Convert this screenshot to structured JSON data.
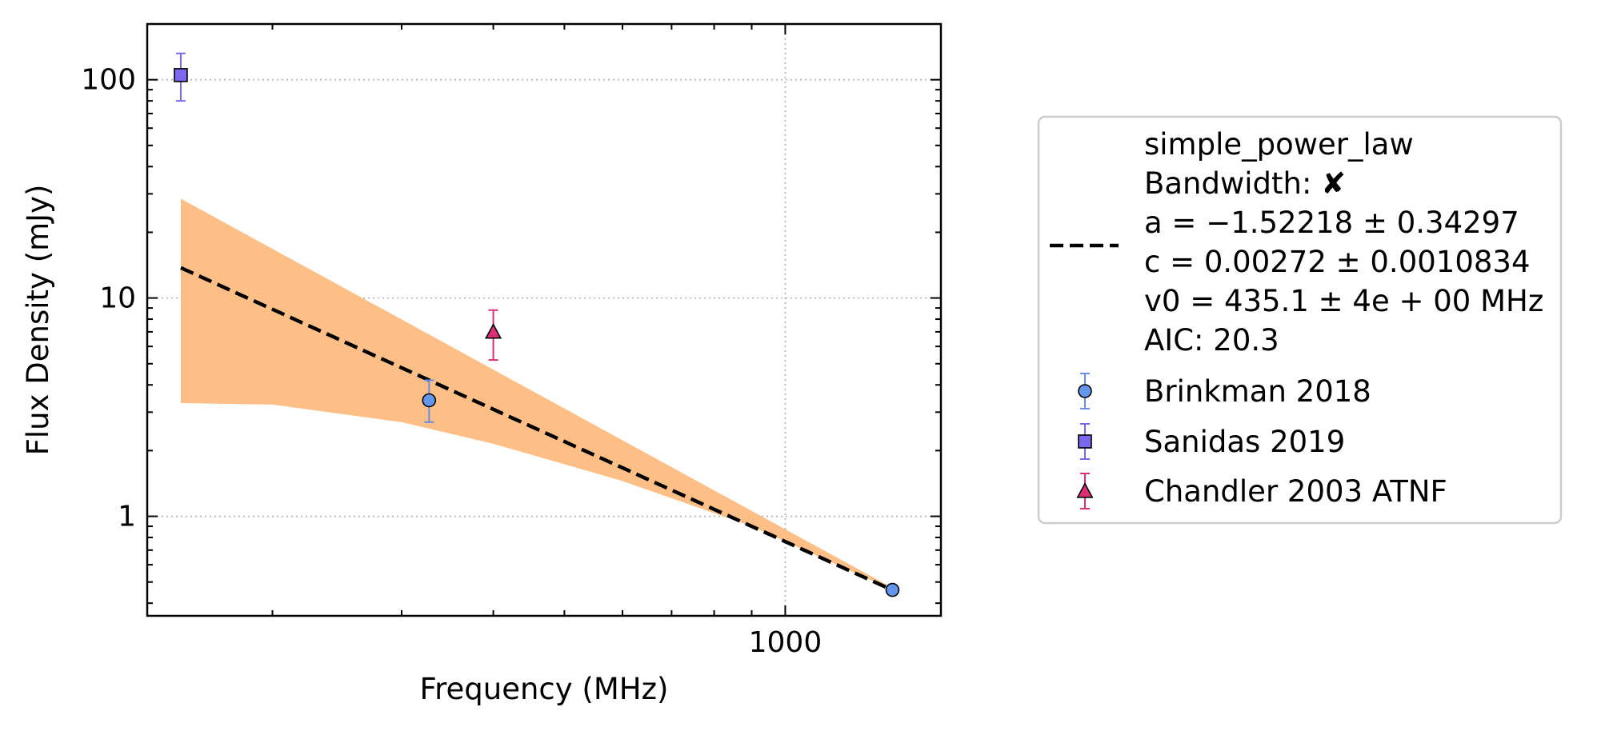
{
  "chart_data": {
    "type": "scatter",
    "title": "",
    "xlabel": "Frequency (MHz)",
    "ylabel": "Flux Density (mJy)",
    "xscale": "log",
    "yscale": "log",
    "xlim": [
      135,
      1630
    ],
    "ylim": [
      0.35,
      180
    ],
    "grid": "dotted, major ticks only",
    "x_tick_labels": [
      {
        "value": 1000,
        "label": "1000"
      }
    ],
    "y_tick_labels": [
      {
        "value": 100,
        "label": "100"
      },
      {
        "value": 10,
        "label": "10"
      },
      {
        "value": 1,
        "label": "1"
      }
    ],
    "series": [
      {
        "name": "Brinkman 2018",
        "marker": "circle",
        "color": "#6495ed",
        "errcolor": "#6b8de6",
        "points": [
          {
            "x": 327,
            "y": 3.4,
            "yerr_low": 0.7,
            "yerr_high": 0.8
          },
          {
            "x": 1400,
            "y": 0.46,
            "yerr_low": 0.02,
            "yerr_high": 0.02
          }
        ]
      },
      {
        "name": "Sanidas 2019",
        "marker": "square",
        "color": "#7b68ee",
        "errcolor": "#7b68ee",
        "points": [
          {
            "x": 150,
            "y": 105,
            "yerr_low": 25,
            "yerr_high": 27
          }
        ]
      },
      {
        "name": "Chandler 2003 ATNF",
        "marker": "triangle",
        "color": "#dc2f75",
        "errcolor": "#dc2f75",
        "points": [
          {
            "x": 400,
            "y": 7.0,
            "yerr_low": 1.8,
            "yerr_high": 1.8
          }
        ]
      }
    ],
    "fit": {
      "model": "simple_power_law",
      "color": "#000000",
      "linestyle": "dashed",
      "a": -1.52218,
      "c": 0.00272,
      "v0": 435.1,
      "x_range": [
        150,
        1400
      ],
      "band_color": "#fdbf86",
      "band_upper": [
        [
          150,
          28.5
        ],
        [
          1400,
          0.47
        ]
      ],
      "band_lower": [
        [
          150,
          3.3
        ],
        [
          200,
          3.25
        ],
        [
          300,
          2.7
        ],
        [
          400,
          2.15
        ],
        [
          600,
          1.45
        ],
        [
          900,
          0.9
        ],
        [
          1400,
          0.46
        ]
      ]
    },
    "legend": {
      "placement": "outside-right",
      "fit_lines": [
        "simple_power_law",
        "Bandwidth: ✘",
        "a = −1.52218 ± 0.34297",
        "c = 0.00272 ± 0.0010834",
        "v0 = 435.1 ± 4e + 00 MHz",
        "AIC: 20.3"
      ]
    }
  }
}
